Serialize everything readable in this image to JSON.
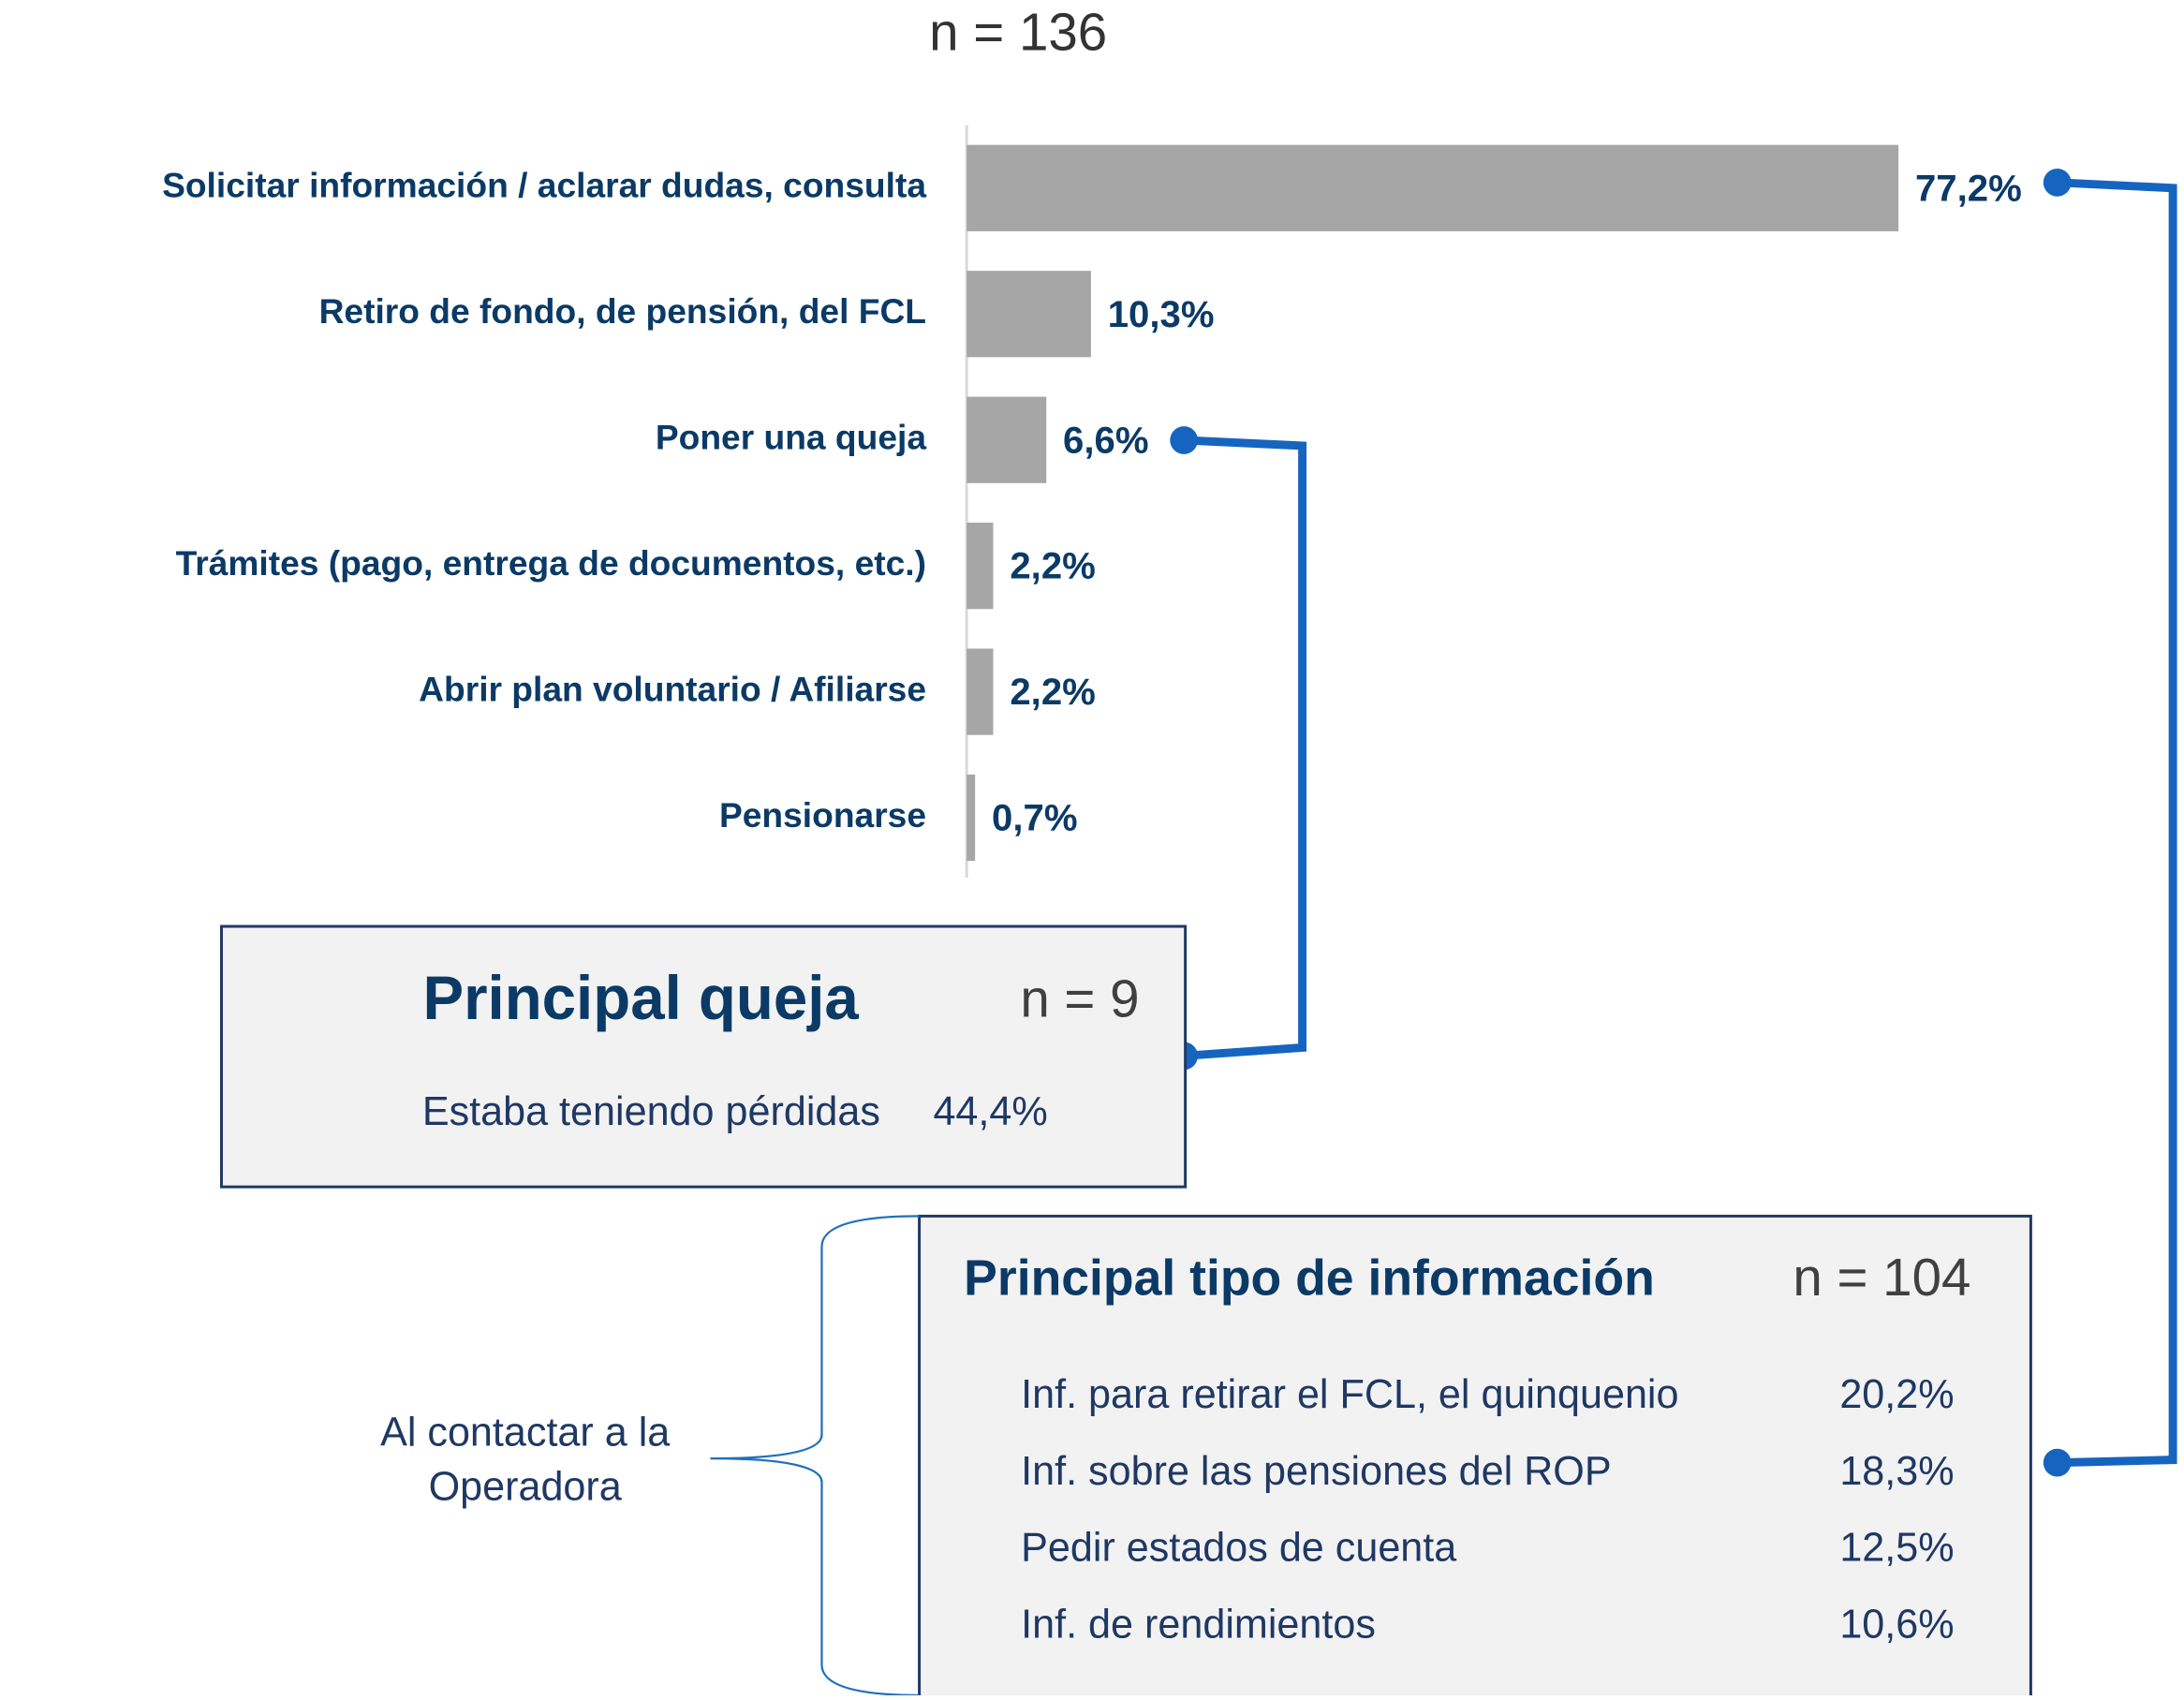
{
  "chart_data": {
    "type": "bar",
    "subtitle": "n = 136",
    "categories": [
      "Solicitar información / aclarar dudas, consulta",
      "Retiro de fondo, de pensión, del FCL",
      "Poner una queja",
      "Trámites (pago, entrega de documentos, etc.)",
      "Abrir plan voluntario / Afiliarse",
      "Pensionarse"
    ],
    "values": [
      77.2,
      10.3,
      6.6,
      2.2,
      2.2,
      0.7
    ],
    "value_labels": [
      "77,2%",
      "10,3%",
      "6,6%",
      "2,2%",
      "2,2%",
      "0,7%"
    ],
    "color": "#a6a6a6"
  },
  "queja_box": {
    "title": "Principal queja",
    "n": "n = 9",
    "rows": [
      {
        "label": "Estaba teniendo pérdidas",
        "value": "44,4%"
      }
    ]
  },
  "info_box": {
    "title": "Principal tipo de información",
    "n": "n = 104",
    "rows": [
      {
        "label": "Inf. para retirar el FCL, el quinquenio",
        "value": "20,2%"
      },
      {
        "label": "Inf. sobre las pensiones del ROP",
        "value": "18,3%"
      },
      {
        "label": "Pedir estados de cuenta",
        "value": "12,5%"
      },
      {
        "label": "Inf. de rendimientos",
        "value": "10,6%"
      }
    ]
  },
  "brace_note": {
    "lines": [
      "Al contactar a la",
      "Operadora"
    ]
  }
}
